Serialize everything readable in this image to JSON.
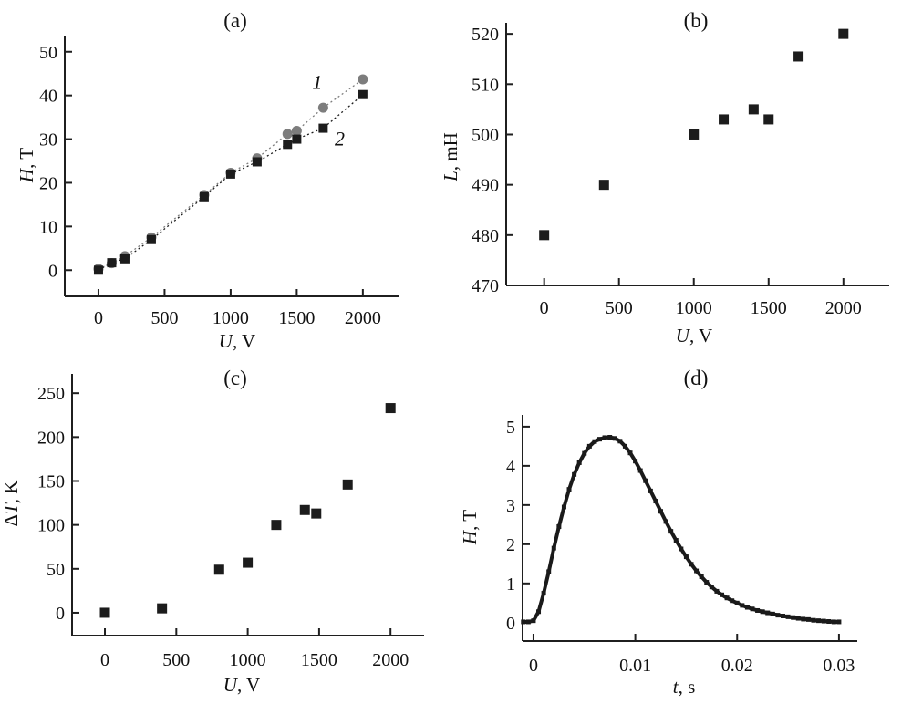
{
  "figure": {
    "background": "#ffffff",
    "text_color": "#111111",
    "axis_color": "#1f1f1f",
    "series1_color": "#7d7d7d",
    "marker_color": "#1c1c1c"
  },
  "chart_data": [
    {
      "id": "a",
      "type": "scatter",
      "title": "(a)",
      "xlabel": {
        "var": "U",
        "unit": "V"
      },
      "ylabel": {
        "var": "H",
        "unit": "T"
      },
      "xlim": [
        -255,
        2270
      ],
      "ylim": [
        -6,
        53.5
      ],
      "xticks": [
        0,
        500,
        1000,
        1500,
        2000
      ],
      "yticks": [
        0,
        10,
        20,
        30,
        40,
        50
      ],
      "grid": false,
      "legend": "inline-numeric-labels",
      "series": [
        {
          "name": "1",
          "marker": "circle",
          "markersize": 11,
          "color": "#7d7d7d",
          "line": "dotted",
          "x": [
            0,
            100,
            200,
            400,
            800,
            1000,
            1200,
            1430,
            1500,
            1700,
            2000
          ],
          "y": [
            0.3,
            1.6,
            3.2,
            7.5,
            17.2,
            22.3,
            25.6,
            31.2,
            31.9,
            37.2,
            43.7
          ]
        },
        {
          "name": "2",
          "marker": "square",
          "markersize": 10,
          "color": "#1c1c1c",
          "line": "dotted",
          "x": [
            0,
            100,
            200,
            400,
            800,
            1000,
            1200,
            1430,
            1500,
            1700,
            2000
          ],
          "y": [
            0,
            1.7,
            2.6,
            7.0,
            16.8,
            22.0,
            24.8,
            28.8,
            30.0,
            32.5,
            40.2
          ]
        }
      ],
      "annotations": [
        {
          "text": "1",
          "x": 1655,
          "y": 43
        },
        {
          "text": "2",
          "x": 1825,
          "y": 30
        }
      ]
    },
    {
      "id": "b",
      "type": "scatter",
      "title": "(b)",
      "xlabel": {
        "var": "U",
        "unit": "V"
      },
      "ylabel": {
        "var": "L",
        "unit": "mH"
      },
      "xlim": [
        -254,
        2306
      ],
      "ylim": [
        470,
        522.2
      ],
      "xticks": [
        0,
        500,
        1000,
        1500,
        2000
      ],
      "yticks": [
        470,
        480,
        490,
        500,
        510,
        520
      ],
      "grid": false,
      "series": [
        {
          "name": "L",
          "marker": "square",
          "markersize": 11,
          "color": "#1c1c1c",
          "line": "none",
          "x": [
            0,
            400,
            1000,
            1200,
            1400,
            1500,
            1700,
            2000
          ],
          "y": [
            480,
            490,
            500,
            503,
            505,
            503,
            515.5,
            520
          ]
        }
      ],
      "annotations": []
    },
    {
      "id": "c",
      "type": "scatter",
      "title": "(c)",
      "xlabel": {
        "var": "U",
        "unit": "V"
      },
      "ylabel": {
        "prefix": "Δ",
        "var": "T",
        "unit": "K"
      },
      "xlim": [
        -230,
        2235
      ],
      "ylim": [
        -26,
        272
      ],
      "xticks": [
        0,
        500,
        1000,
        1500,
        2000
      ],
      "yticks": [
        0,
        50,
        100,
        150,
        200,
        250
      ],
      "grid": false,
      "series": [
        {
          "name": "ΔT",
          "marker": "square",
          "markersize": 11,
          "color": "#1c1c1c",
          "line": "none",
          "x": [
            0,
            400,
            800,
            1000,
            1200,
            1400,
            1480,
            1700,
            2000
          ],
          "y": [
            0,
            5,
            49,
            57,
            100,
            117,
            113,
            146,
            233
          ]
        }
      ],
      "annotations": []
    },
    {
      "id": "d",
      "type": "line",
      "title": "(d)",
      "xlabel": {
        "var": "t",
        "unit": "s"
      },
      "ylabel": {
        "var": "H",
        "unit": "T"
      },
      "xlim": [
        -0.00107,
        0.0318
      ],
      "ylim": [
        -0.47,
        5.3
      ],
      "xticks": [
        0,
        0.01,
        0.02,
        0.03
      ],
      "yticks": [
        0,
        1,
        2,
        3,
        4,
        5
      ],
      "grid": false,
      "series": [
        {
          "name": "H(t)",
          "marker": "square",
          "markersize": 5,
          "color": "#1a1a1a",
          "line": "solid",
          "x": [
            -0.001,
            -0.0005,
            0,
            0.0005,
            0.001,
            0.0015,
            0.002,
            0.0025,
            0.003,
            0.0035,
            0.004,
            0.0045,
            0.005,
            0.0055,
            0.006,
            0.0065,
            0.007,
            0.0075,
            0.008,
            0.0085,
            0.009,
            0.0095,
            0.01,
            0.0105,
            0.011,
            0.0115,
            0.012,
            0.0125,
            0.013,
            0.0135,
            0.014,
            0.0145,
            0.015,
            0.0155,
            0.016,
            0.0165,
            0.017,
            0.0175,
            0.018,
            0.0185,
            0.019,
            0.0195,
            0.02,
            0.0205,
            0.021,
            0.0215,
            0.022,
            0.0225,
            0.023,
            0.0235,
            0.024,
            0.0245,
            0.025,
            0.0255,
            0.026,
            0.0265,
            0.027,
            0.0275,
            0.028,
            0.0285,
            0.029,
            0.0295,
            0.03
          ],
          "y": [
            0.02,
            0.02,
            0.05,
            0.28,
            0.75,
            1.3,
            1.9,
            2.45,
            2.95,
            3.4,
            3.78,
            4.08,
            4.32,
            4.5,
            4.62,
            4.68,
            4.72,
            4.73,
            4.7,
            4.63,
            4.5,
            4.33,
            4.12,
            3.88,
            3.62,
            3.36,
            3.1,
            2.84,
            2.58,
            2.33,
            2.1,
            1.88,
            1.68,
            1.49,
            1.32,
            1.17,
            1.03,
            0.91,
            0.8,
            0.71,
            0.63,
            0.56,
            0.5,
            0.44,
            0.39,
            0.35,
            0.31,
            0.28,
            0.25,
            0.22,
            0.19,
            0.17,
            0.15,
            0.13,
            0.11,
            0.09,
            0.08,
            0.06,
            0.05,
            0.04,
            0.03,
            0.02,
            0.02
          ]
        }
      ],
      "annotations": []
    }
  ]
}
